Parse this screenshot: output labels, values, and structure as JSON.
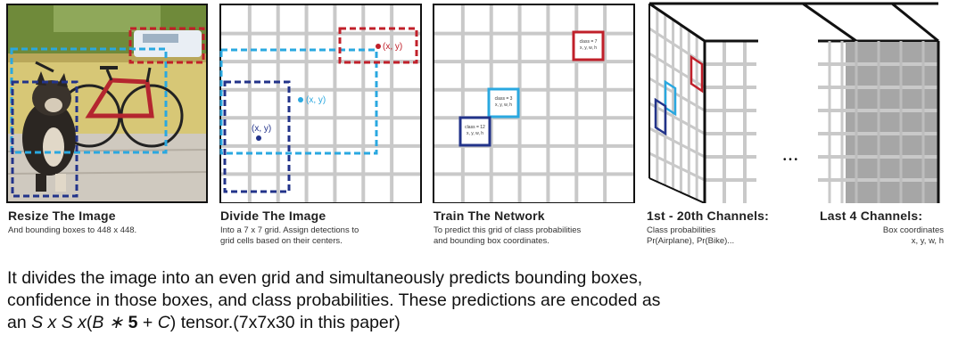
{
  "panels": [
    {
      "title": "Resize The Image",
      "desc": [
        "And bounding boxes to 448 x 448."
      ]
    },
    {
      "title": "Divide The Image",
      "desc": [
        "Into a 7 x 7 grid. Assign detections to",
        "grid cells based on their centers."
      ],
      "points": [
        "(x, y)",
        "(x, y)",
        "(x, y)"
      ]
    },
    {
      "title": "Train The Network",
      "desc": [
        "To predict this grid of class probabilities",
        "and bounding box coordinates."
      ],
      "cell_labels": [
        [
          "class = 7",
          "x, y, w, h"
        ],
        [
          "class = 3",
          "x, y, w, h"
        ],
        [
          "class = 12",
          "x, y, w, h"
        ]
      ]
    },
    {
      "title": "1st - 20th Channels:",
      "desc": [
        "Class probabilities",
        "Pr(Airplane), Pr(Bike)..."
      ]
    },
    {
      "title": "Last 4 Channels:",
      "desc": [
        "Box coordinates",
        "x, y, w, h"
      ]
    }
  ],
  "ellipsis": "• • •",
  "colors": {
    "red": "#c0202a",
    "light_blue": "#2aa8e0",
    "dark_blue": "#22338a",
    "grid": "#c9c9c9",
    "tensor_gray": "#a6a6a6"
  },
  "body": {
    "line1": "It divides the image into an even grid and simultaneously predicts bounding boxes,",
    "line2": "confidence in those boxes, and class probabilities. These predictions are encoded as",
    "line3_a": "an ",
    "line3_S1": "S",
    "line3_x1": " x ",
    "line3_S2": "S",
    "line3_x2": " x",
    "line3_paren_open": "(",
    "line3_B": "B",
    "line3_times": " ∗ ",
    "line3_5": "5",
    "line3_plus": " + ",
    "line3_C": "C",
    "line3_rest": ") tensor.(7x7x30 in this paper)"
  }
}
